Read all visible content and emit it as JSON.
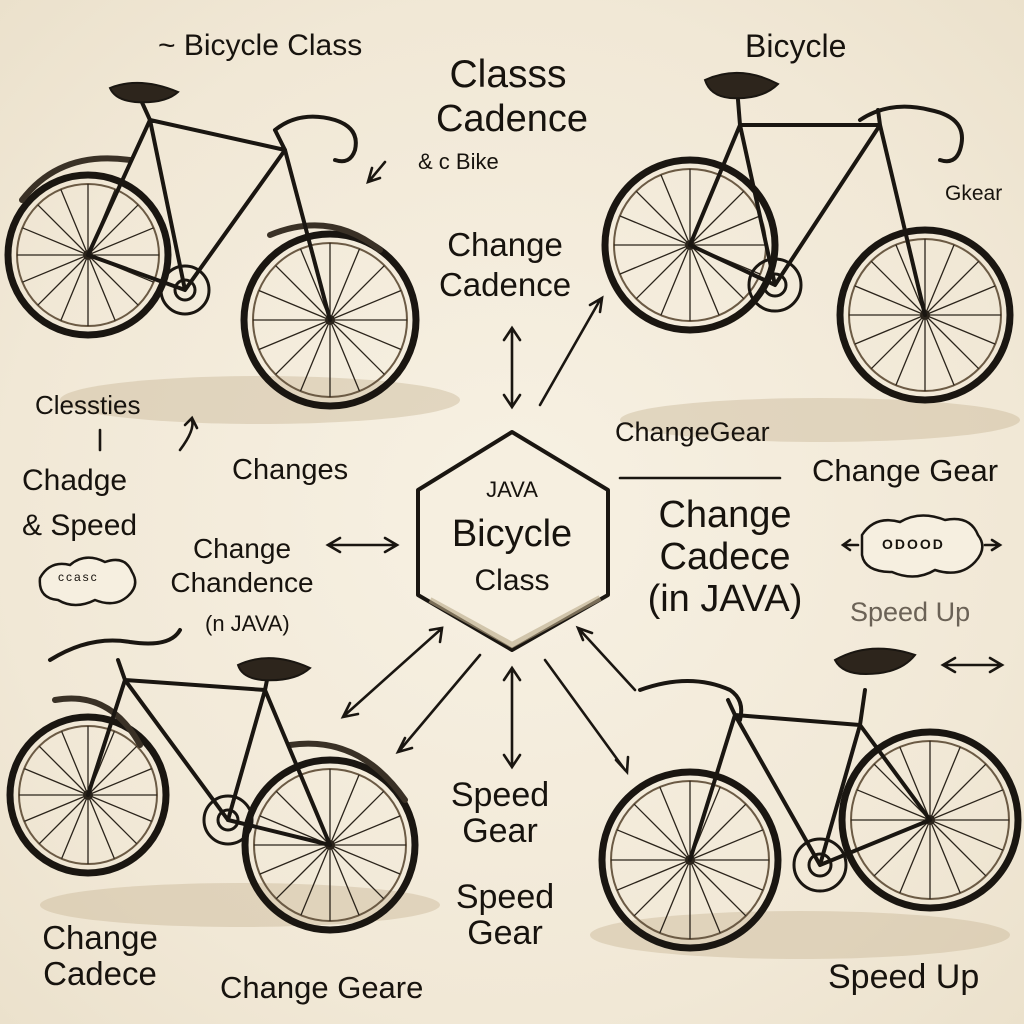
{
  "labels": {
    "tl_title": "~ Bicycle Class",
    "tl_classs": "Classs",
    "tl_cadence": "Cadence",
    "tl_bike": "& c Bike",
    "tl_change_cadence": "Change\nCadence",
    "tr_title": "Bicycle",
    "tr_gear": "Gkear",
    "left_clessties": "Clessties",
    "left_chadge": "Chadge",
    "left_speed": "& Speed",
    "left_badge": "ccasc",
    "mid_changes": "Changes",
    "mid_change_chandence": "Change\nChandence",
    "mid_injava": "(n JAVA)",
    "center_java": "JAVA",
    "center_bicycle": "Bicycle",
    "center_class": "Class",
    "right_changegear_small": "ChangeGear",
    "right_changegear": "Change Gear",
    "right_change_cadece": "Change\nCadece\n(in JAVA)",
    "right_badge": "ODOOD",
    "right_speed_up": "Speed Up",
    "bottom_speed_gear_1": "Speed\nGear",
    "bottom_speed_gear_2": "Speed\nGear",
    "bl_change_cadece": "Change\nCadece",
    "bl_change_geare": "Change Geare",
    "br_speed_up": "Speed Up"
  }
}
